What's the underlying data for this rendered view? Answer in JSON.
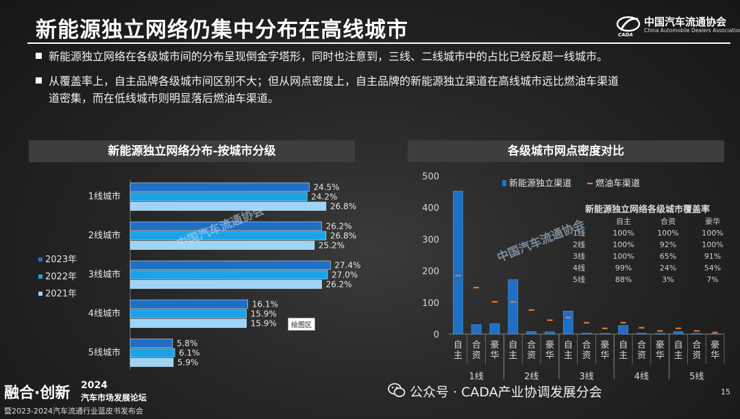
{
  "slide": {
    "title": "新能源独立网络仍集中分布在高线城市",
    "bullets": [
      "新能源独立网络在各级城市间的分布呈现倒金字塔形，同时也注意到，三线、二线城市中的占比已经反超一线城市。",
      "从覆盖率上，自主品牌各级城市间区别不大；但从网点密度上，自主品牌的新能源独立渠道在高线城市远比燃油车渠道",
      "道密集，而在低线城市则明显落后燃油车渠道。"
    ],
    "logo_cn": "中国汽车流通协会",
    "logo_en": "China Automobile Dealers Association",
    "footer_big": "融合·创新",
    "footer_year": "2024",
    "footer_forum": "汽车市场发展论坛",
    "footer_sub": "暨2023-2024汽车流通行业蓝皮书发布会",
    "wechat": "公众号 · CADA产业协调发展分会",
    "page_number": "15",
    "tooltip": "绘图区"
  },
  "colors": {
    "y2023": "#1f6fc5",
    "y2022": "#1aa3e8",
    "y2021": "#9fd4f6",
    "nev_bar": "#1f6fc5",
    "ice_marker": "#e87a2a",
    "axis_text": "#d9d9d9"
  },
  "chart_data": [
    {
      "type": "bar",
      "orientation": "horizontal",
      "title": "新能源独立网络分布-按城市分级",
      "categories": [
        "1线城市",
        "2线城市",
        "3线城市",
        "4线城市",
        "5线城市"
      ],
      "series": [
        {
          "name": "2023年",
          "values": [
            24.5,
            26.2,
            27.4,
            16.1,
            5.8
          ],
          "labels": [
            "24.5%",
            "26.2%",
            "27.4%",
            "16.1%",
            "5.8%"
          ]
        },
        {
          "name": "2022年",
          "values": [
            24.2,
            26.8,
            27.0,
            15.9,
            6.1
          ],
          "labels": [
            "24.2%",
            "26.8%",
            "27.0%",
            "15.9%",
            "6.1%"
          ]
        },
        {
          "name": "2021年",
          "values": [
            26.8,
            25.2,
            26.2,
            15.9,
            5.9
          ],
          "labels": [
            "26.8%",
            "25.2%",
            "26.2%",
            "15.9%",
            "5.9%"
          ]
        }
      ],
      "legend_position": "left"
    },
    {
      "type": "bar",
      "title": "各级城市网点密度对比",
      "groups": [
        "1线",
        "2线",
        "3线",
        "4线",
        "5线"
      ],
      "subcategories": [
        "自主",
        "合资",
        "豪华"
      ],
      "series": [
        {
          "name": "新能源独立渠道",
          "marker": "bar",
          "values": [
            [
              452,
              30,
              33
            ],
            [
              172,
              8,
              7
            ],
            [
              73,
              3,
              2
            ],
            [
              27,
              3,
              2
            ],
            [
              8,
              2,
              1
            ]
          ]
        },
        {
          "name": "燃油车渠道",
          "marker": "dash",
          "values": [
            [
              185,
              147,
              102
            ],
            [
              102,
              76,
              44
            ],
            [
              53,
              36,
              18
            ],
            [
              36,
              20,
              10
            ],
            [
              18,
              10,
              5
            ]
          ]
        }
      ],
      "ylim": [
        0,
        500
      ],
      "yticks": [
        0,
        100,
        200,
        300,
        400,
        500
      ],
      "legend_position": "top",
      "inset_table": {
        "title": "新能源独立网络各级城市覆盖率",
        "columns": [
          "",
          "自主",
          "合资",
          "豪华"
        ],
        "rows": [
          [
            "1线",
            "100%",
            "100%",
            "100%"
          ],
          [
            "2线",
            "100%",
            "92%",
            "100%"
          ],
          [
            "3线",
            "100%",
            "65%",
            "91%"
          ],
          [
            "4线",
            "99%",
            "24%",
            "54%"
          ],
          [
            "5线",
            "88%",
            "3%",
            "7%"
          ]
        ]
      }
    }
  ]
}
